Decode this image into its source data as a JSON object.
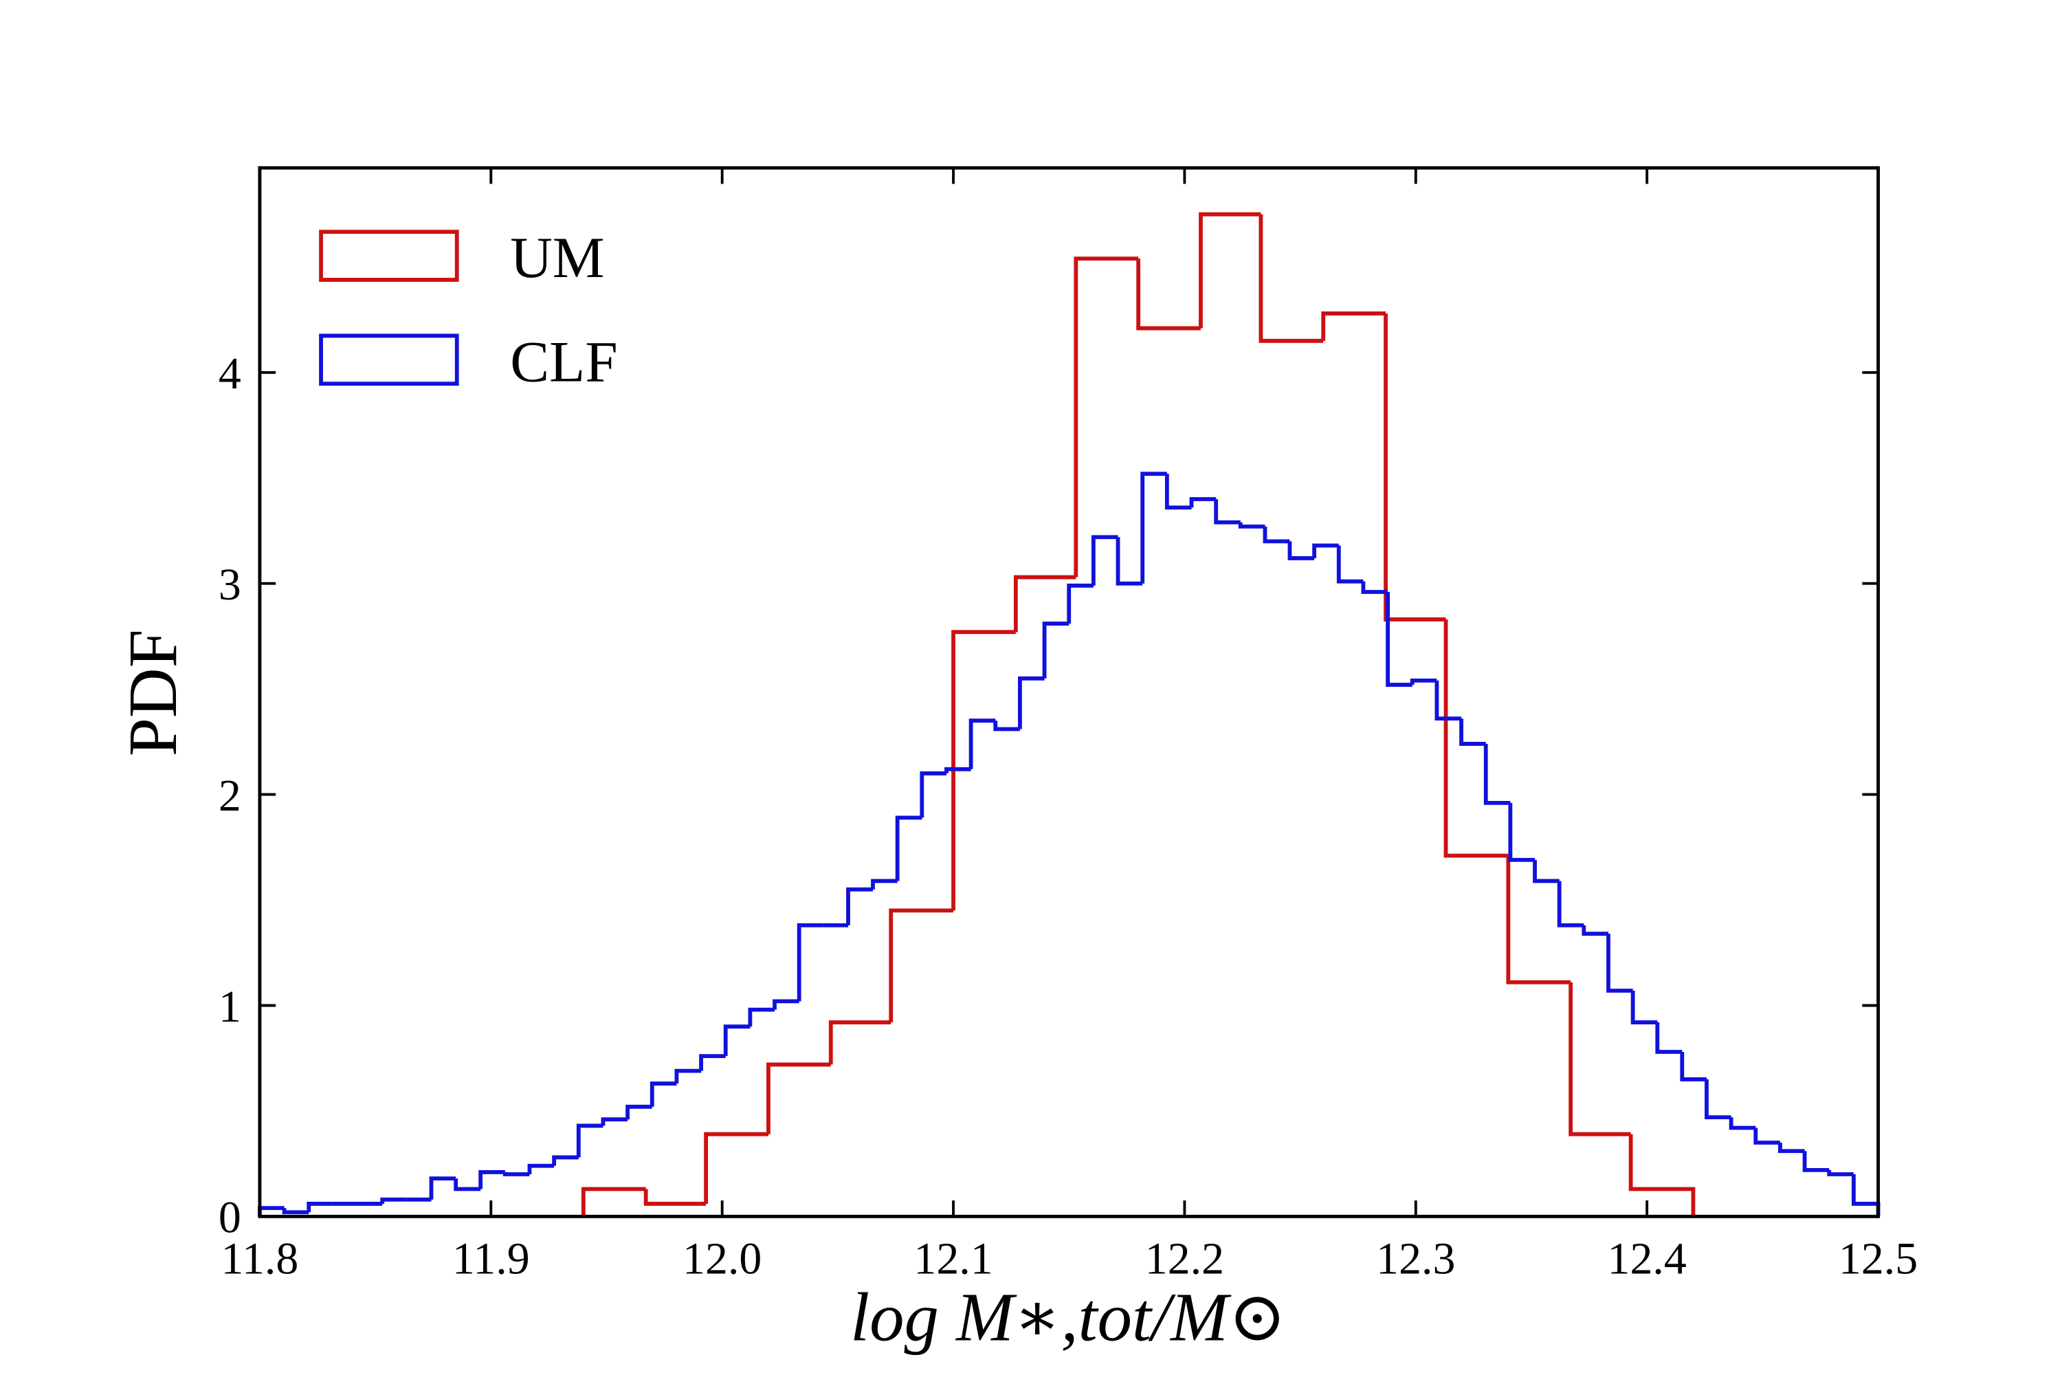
{
  "chart_data": {
    "type": "histogram",
    "xlabel": "log M∗,tot/M⊙",
    "ylabel": "PDF",
    "xlim": [
      11.8,
      12.5
    ],
    "ylim": [
      0,
      4.97
    ],
    "xticks": [
      11.8,
      11.9,
      {
        "value": 12,
        "label": "12.0"
      },
      12.1,
      12.2,
      12.3,
      12.4,
      12.5
    ],
    "yticks": [
      0,
      1,
      2,
      3,
      4
    ],
    "legend": "upper left",
    "series": [
      {
        "name": "UM",
        "color": "#cc1111",
        "bins": [
          11.94,
          11.967,
          11.993,
          12.02,
          12.047,
          12.073,
          12.1,
          12.127,
          12.153,
          12.18,
          12.207,
          12.233,
          12.26,
          12.287,
          12.313,
          12.34,
          12.367,
          12.393,
          12.42
        ],
        "values": [
          0.13,
          0.06,
          0.39,
          0.72,
          0.92,
          1.45,
          2.77,
          3.03,
          4.54,
          4.21,
          4.75,
          4.15,
          4.28,
          2.83,
          1.71,
          1.11,
          0.39,
          0.13
        ]
      },
      {
        "name": "CLF",
        "color": "#1111dd",
        "bins": [
          11.8,
          11.8106,
          11.8212,
          11.8318,
          11.8424,
          11.853,
          11.8636,
          11.8742,
          11.8848,
          11.8955,
          11.9061,
          11.9167,
          11.9273,
          11.9379,
          11.9485,
          11.9591,
          11.9697,
          11.9803,
          11.9909,
          12.0015,
          12.0121,
          12.0227,
          12.0333,
          12.0439,
          12.0545,
          12.0652,
          12.0758,
          12.0864,
          12.097,
          12.1076,
          12.1182,
          12.1288,
          12.1394,
          12.15,
          12.1606,
          12.1712,
          12.1818,
          12.1924,
          12.203,
          12.2136,
          12.2242,
          12.2348,
          12.2455,
          12.2561,
          12.2667,
          12.2773,
          12.2879,
          12.2985,
          12.3091,
          12.3197,
          12.3303,
          12.3409,
          12.3515,
          12.3621,
          12.3727,
          12.3833,
          12.3939,
          12.4045,
          12.4152,
          12.4258,
          12.4364,
          12.447,
          12.4576,
          12.4682,
          12.4788,
          12.4894,
          12.5
        ],
        "values": [
          0.04,
          0.02,
          0.06,
          0.06,
          0.06,
          0.08,
          0.08,
          0.18,
          0.13,
          0.21,
          0.2,
          0.24,
          0.28,
          0.43,
          0.46,
          0.52,
          0.63,
          0.69,
          0.76,
          0.9,
          0.98,
          1.02,
          1.38,
          1.38,
          1.55,
          1.59,
          1.89,
          2.1,
          2.12,
          2.35,
          2.31,
          2.55,
          2.81,
          2.99,
          3.22,
          3.0,
          3.52,
          3.36,
          3.4,
          3.29,
          3.27,
          3.2,
          3.12,
          3.18,
          3.01,
          2.96,
          2.52,
          2.54,
          2.36,
          2.24,
          1.96,
          1.69,
          1.59,
          1.38,
          1.34,
          1.07,
          0.92,
          0.78,
          0.65,
          0.47,
          0.42,
          0.35,
          0.31,
          0.22,
          0.2,
          0.06
        ]
      }
    ]
  }
}
